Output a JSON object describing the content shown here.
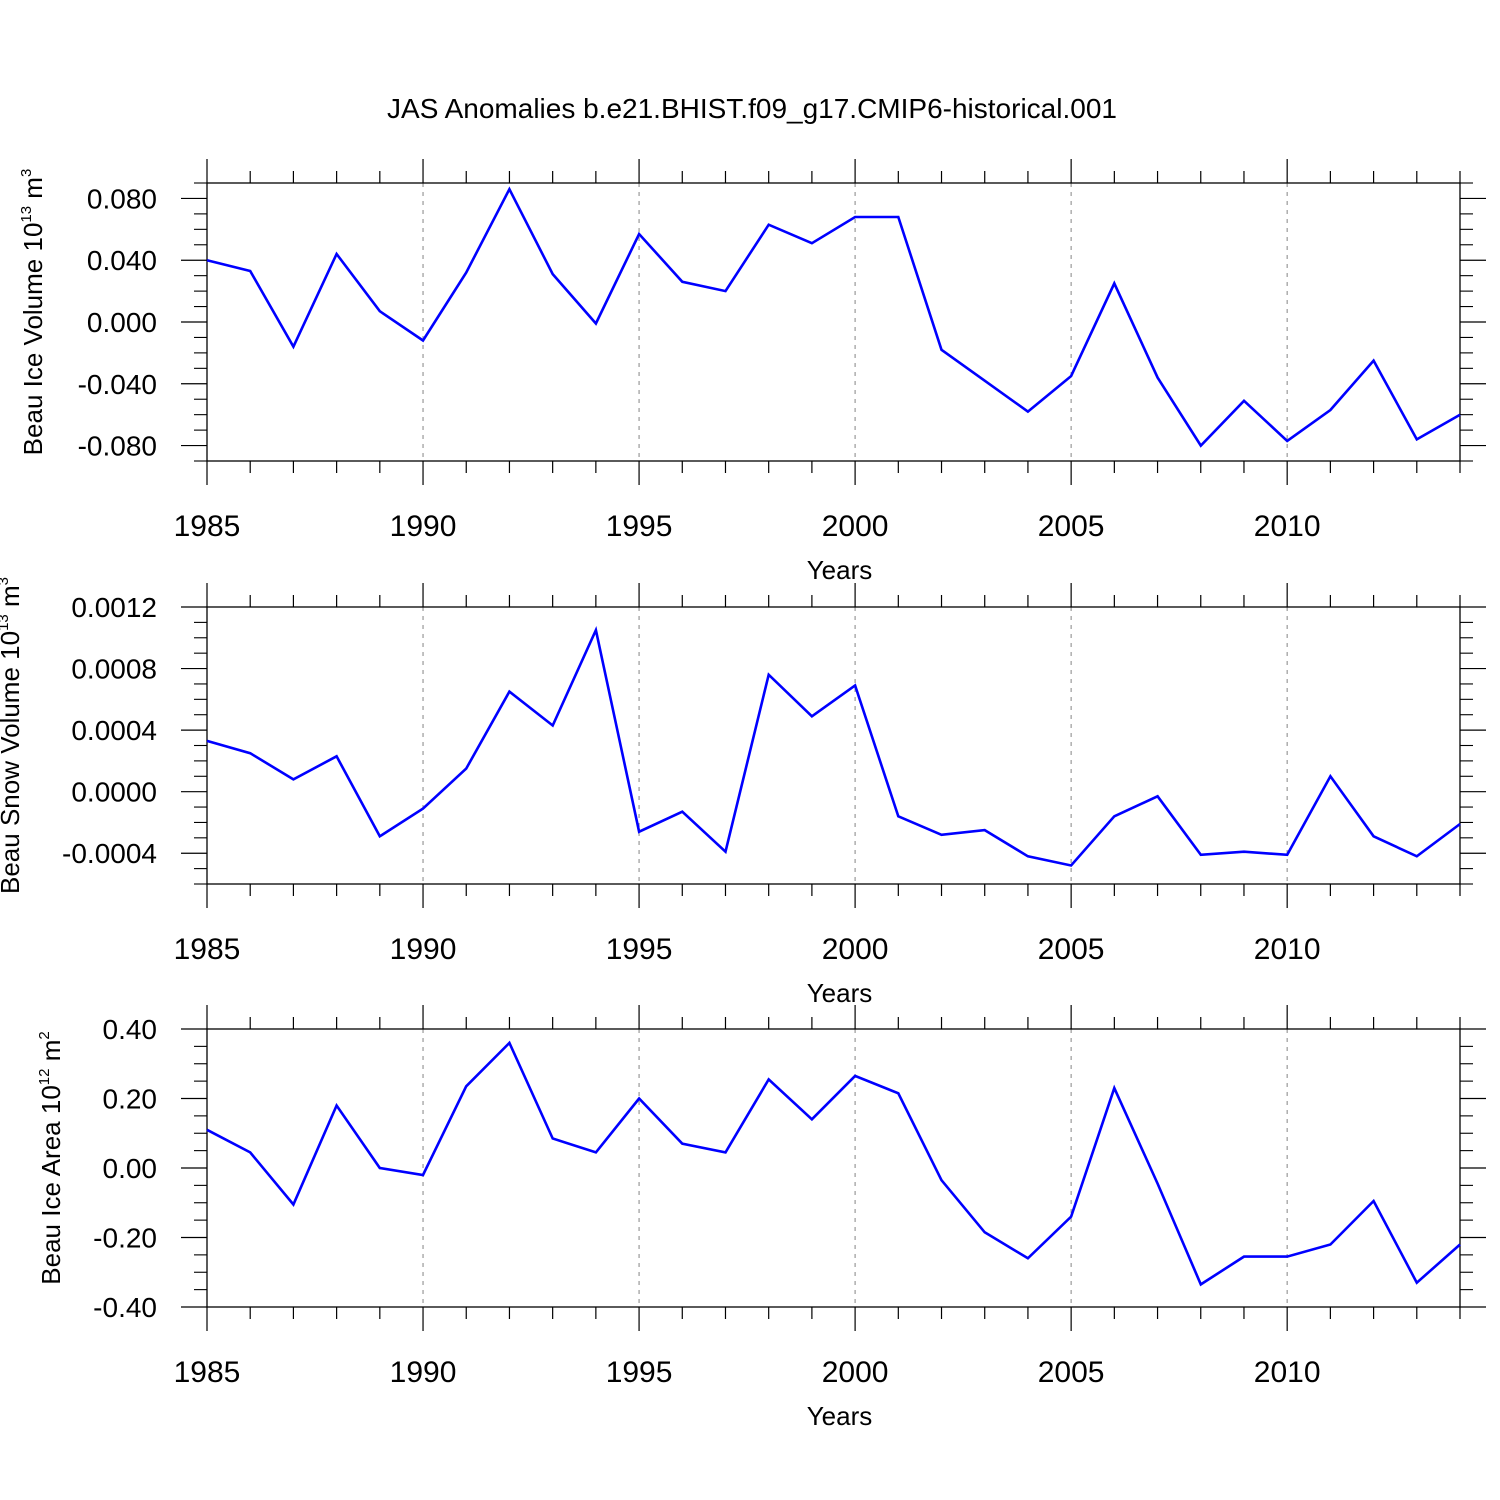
{
  "figure_title": "JAS Anomalies b.e21.BHIST.f09_g17.CMIP6-historical.001",
  "colors": {
    "line": "#0000ff",
    "axis": "#000000",
    "grid": "#999999",
    "background": "#ffffff"
  },
  "chart_data": [
    {
      "type": "line",
      "id": "ice-volume",
      "title": "JAS Anomalies b.e21.BHIST.f09_g17.CMIP6-historical.001",
      "xlabel": "Years",
      "ylabel_prefix": "Beau Ice Volume 10",
      "ylabel_exp": "13",
      "ylabel_unit": " m",
      "ylabel_unit_exp": "3",
      "xlim": [
        1985,
        2014
      ],
      "ylim": [
        -0.09,
        0.09
      ],
      "grid": "dashed vertical lines at labeled years",
      "x_ticks": [
        1985,
        1990,
        1995,
        2000,
        2005,
        2010
      ],
      "x_tick_labels": [
        "1985",
        "1990",
        "1995",
        "2000",
        "2005",
        "2010"
      ],
      "y_ticks": [
        0.08,
        0.04,
        0.0,
        -0.04,
        -0.08
      ],
      "y_tick_labels": [
        "0.080",
        "0.040",
        "0.000",
        "-0.040",
        "-0.080"
      ],
      "y_minor_step": 0.01,
      "x": [
        1985,
        1986,
        1987,
        1988,
        1989,
        1990,
        1991,
        1992,
        1993,
        1994,
        1995,
        1996,
        1997,
        1998,
        1999,
        2000,
        2001,
        2002,
        2003,
        2004,
        2005,
        2006,
        2007,
        2008,
        2009,
        2010,
        2011,
        2012,
        2013,
        2014
      ],
      "values": [
        0.04,
        0.033,
        -0.016,
        0.044,
        0.007,
        -0.012,
        0.032,
        0.086,
        0.031,
        -0.001,
        0.057,
        0.026,
        0.02,
        0.063,
        0.051,
        0.068,
        0.068,
        -0.018,
        -0.038,
        -0.058,
        -0.035,
        0.025,
        -0.036,
        -0.08,
        -0.051,
        -0.077,
        -0.057,
        -0.025,
        -0.076,
        -0.06
      ]
    },
    {
      "type": "line",
      "id": "snow-volume",
      "xlabel": "Years",
      "ylabel_prefix": "Beau Snow Volume 10",
      "ylabel_exp": "13",
      "ylabel_unit": " m",
      "ylabel_unit_exp": "3",
      "xlim": [
        1985,
        2014
      ],
      "ylim": [
        -0.0006,
        0.0012
      ],
      "grid": "dashed vertical lines at labeled years",
      "x_ticks": [
        1985,
        1990,
        1995,
        2000,
        2005,
        2010
      ],
      "x_tick_labels": [
        "1985",
        "1990",
        "1995",
        "2000",
        "2005",
        "2010"
      ],
      "y_ticks": [
        0.0012,
        0.0008,
        0.0004,
        0.0,
        -0.0004
      ],
      "y_tick_labels": [
        "0.0012",
        "0.0008",
        "0.0004",
        "0.0000",
        "-0.0004"
      ],
      "y_minor_step": 0.0001,
      "x": [
        1985,
        1986,
        1987,
        1988,
        1989,
        1990,
        1991,
        1992,
        1993,
        1994,
        1995,
        1996,
        1997,
        1998,
        1999,
        2000,
        2001,
        2002,
        2003,
        2004,
        2005,
        2006,
        2007,
        2008,
        2009,
        2010,
        2011,
        2012,
        2013,
        2014
      ],
      "values": [
        0.00033,
        0.00025,
        8e-05,
        0.00023,
        -0.00029,
        -0.00011,
        0.00015,
        0.00065,
        0.00043,
        0.00105,
        -0.00026,
        -0.00013,
        -0.00039,
        0.00076,
        0.00049,
        0.00069,
        -0.00016,
        -0.00028,
        -0.00025,
        -0.00042,
        -0.00048,
        -0.00016,
        -3e-05,
        -0.00041,
        -0.00039,
        -0.00041,
        0.0001,
        -0.00029,
        -0.00042,
        -0.00021
      ]
    },
    {
      "type": "line",
      "id": "ice-area",
      "xlabel": "Years",
      "ylabel_prefix": "Beau Ice Area 10",
      "ylabel_exp": "12",
      "ylabel_unit": " m",
      "ylabel_unit_exp": "2",
      "xlim": [
        1985,
        2014
      ],
      "ylim": [
        -0.4,
        0.4
      ],
      "grid": "dashed vertical lines at labeled years",
      "x_ticks": [
        1985,
        1990,
        1995,
        2000,
        2005,
        2010
      ],
      "x_tick_labels": [
        "1985",
        "1990",
        "1995",
        "2000",
        "2005",
        "2010"
      ],
      "y_ticks": [
        0.4,
        0.2,
        0.0,
        -0.2,
        -0.4
      ],
      "y_tick_labels": [
        "0.40",
        "0.20",
        "0.00",
        "-0.20",
        "-0.40"
      ],
      "y_minor_step": 0.05,
      "x": [
        1985,
        1986,
        1987,
        1988,
        1989,
        1990,
        1991,
        1992,
        1993,
        1994,
        1995,
        1996,
        1997,
        1998,
        1999,
        2000,
        2001,
        2002,
        2003,
        2004,
        2005,
        2006,
        2007,
        2008,
        2009,
        2010,
        2011,
        2012,
        2013,
        2014
      ],
      "values": [
        0.11,
        0.045,
        -0.105,
        0.18,
        0.0,
        -0.02,
        0.235,
        0.36,
        0.085,
        0.045,
        0.2,
        0.07,
        0.045,
        0.255,
        0.14,
        0.265,
        0.215,
        -0.035,
        -0.185,
        -0.26,
        -0.14,
        0.23,
        -0.045,
        -0.335,
        -0.255,
        -0.255,
        -0.22,
        -0.095,
        -0.33,
        -0.22
      ]
    }
  ]
}
